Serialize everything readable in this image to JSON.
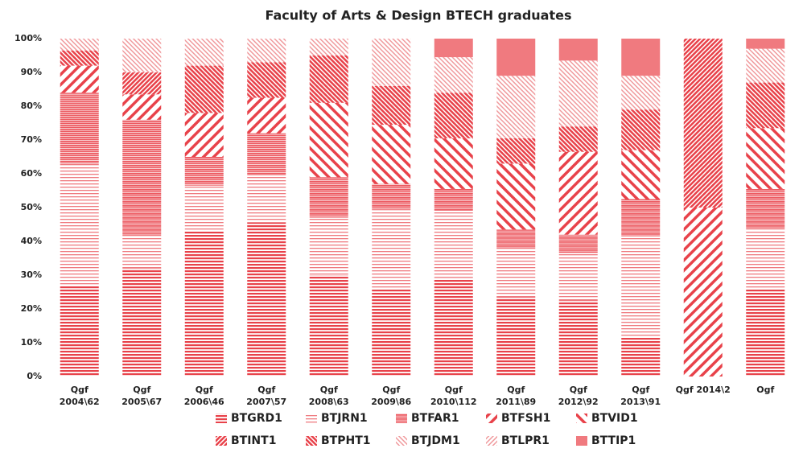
{
  "chart_data": {
    "type": "stacked_bar_100",
    "title": "Faculty of Arts & Design BTECH graduates",
    "categories": [
      "Qgf\n2004\\62",
      "Qgf\n2005\\67",
      "Qgf\n2006\\46",
      "Qgf\n2007\\57",
      "Qgf\n2008\\63",
      "Qgf\n2009\\86",
      "Qgf\n2010\\112",
      "Qgf\n2011\\89",
      "Qgf\n2012\\92",
      "Qgf\n2013\\91",
      "Qgf 2014\\2",
      "Ogf"
    ],
    "series": [
      {
        "name": "BTGRD1",
        "color": "#e8424a",
        "pattern": "hlines",
        "values": [
          27,
          32,
          43,
          45.5,
          30,
          26,
          29,
          23.5,
          22.5,
          11.5,
          0,
          26
        ]
      },
      {
        "name": "BTJRN1",
        "color": "#ef7a7f",
        "pattern": "hlines-light",
        "values": [
          36,
          10,
          13.5,
          14,
          17,
          23.5,
          20,
          14.5,
          14,
          30,
          0,
          17.5
        ]
      },
      {
        "name": "BTFAR1",
        "color": "#ec5a61",
        "pattern": "dense",
        "values": [
          21,
          34,
          8.5,
          12.5,
          12,
          7.5,
          6.5,
          5.5,
          5.5,
          11,
          0,
          12
        ]
      },
      {
        "name": "BTFSH1",
        "color": "#e8424a",
        "pattern": "fwd",
        "values": [
          8,
          7.5,
          13,
          10.5,
          0,
          0,
          0,
          0,
          24.5,
          0,
          50,
          0
        ]
      },
      {
        "name": "BTVID1",
        "color": "#e8424a",
        "pattern": "back",
        "values": [
          0,
          0,
          0,
          0,
          22,
          17.5,
          15,
          19.5,
          0,
          14.5,
          0,
          18
        ]
      },
      {
        "name": "BTINT1",
        "color": "#e8424a",
        "pattern": "fwd-thin",
        "values": [
          0,
          6.5,
          0,
          0,
          0,
          0,
          0,
          0,
          0,
          0,
          50,
          0
        ]
      },
      {
        "name": "BTPHT1",
        "color": "#e8424a",
        "pattern": "back-thin",
        "values": [
          4.5,
          0,
          14,
          10.5,
          14,
          11.5,
          13.5,
          7.5,
          7.5,
          12,
          0,
          13.5
        ]
      },
      {
        "name": "BTJDM1",
        "color": "#f09a9d",
        "pattern": "back-light",
        "values": [
          3.5,
          10,
          8,
          7,
          5,
          14,
          10.5,
          18.5,
          19.5,
          10,
          0,
          10
        ]
      },
      {
        "name": "BTLPR1",
        "color": "#f09a9d",
        "pattern": "fwd-light",
        "values": [
          0,
          0,
          0,
          0,
          0,
          0,
          0,
          0,
          0,
          0,
          0,
          0
        ]
      },
      {
        "name": "BTTIP1",
        "color": "#f07a7f",
        "pattern": "solid",
        "values": [
          0,
          0,
          0,
          0,
          0,
          0,
          5.5,
          11,
          6.5,
          11,
          0,
          3
        ]
      }
    ],
    "ylim": [
      0,
      100
    ],
    "yticks": [
      {
        "value": 0,
        "label": "0%"
      },
      {
        "value": 10,
        "label": "10%"
      },
      {
        "value": 20,
        "label": "20%"
      },
      {
        "value": 30,
        "label": "30%"
      },
      {
        "value": 40,
        "label": "40%"
      },
      {
        "value": 50,
        "label": "50%"
      },
      {
        "value": 60,
        "label": "60%"
      },
      {
        "value": 70,
        "label": "70%"
      },
      {
        "value": 80,
        "label": "80%"
      },
      {
        "value": 90,
        "label": "90%"
      },
      {
        "value": 100,
        "label": "100%"
      }
    ],
    "grid": false,
    "legend": "bottom"
  }
}
